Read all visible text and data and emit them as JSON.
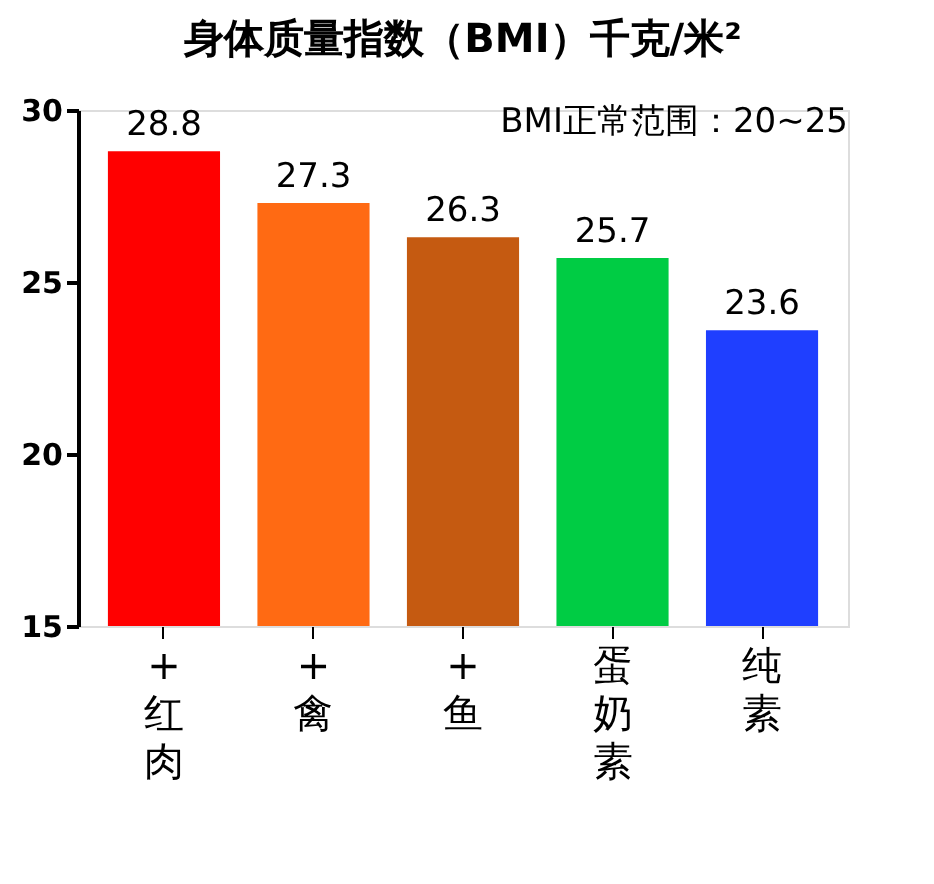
{
  "chart_data": {
    "type": "bar",
    "title": "身体质量指数（BMI）千克/米²",
    "categories": [
      "+红肉",
      "+禽",
      "+鱼",
      "蛋奶素",
      "纯素"
    ],
    "values": [
      28.8,
      27.3,
      26.3,
      25.7,
      23.6
    ],
    "colors": [
      "#ff0000",
      "#ff6a13",
      "#c55a11",
      "#00cc44",
      "#1f3fff"
    ],
    "ylim": [
      15,
      30
    ],
    "yticks": [
      15,
      20,
      25,
      30
    ],
    "grid": false,
    "data_labels": true,
    "annotations": [
      "BMI正常范围：20~25"
    ]
  }
}
